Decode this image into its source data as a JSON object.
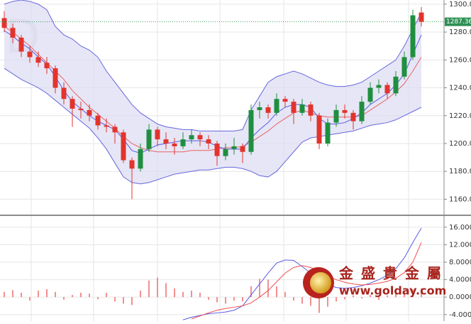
{
  "chart_data": [
    {
      "type": "candlestick",
      "up_color": "#1f8f3f",
      "down_color": "#e3342c",
      "candles": [
        [
          1290,
          1295,
          1280,
          1283
        ],
        [
          1283,
          1286,
          1272,
          1276
        ],
        [
          1276,
          1278,
          1262,
          1266
        ],
        [
          1266,
          1270,
          1258,
          1262
        ],
        [
          1262,
          1266,
          1255,
          1258
        ],
        [
          1258,
          1262,
          1250,
          1254
        ],
        [
          1254,
          1256,
          1236,
          1240
        ],
        [
          1240,
          1244,
          1228,
          1232
        ],
        [
          1232,
          1234,
          1212,
          1225
        ],
        [
          1225,
          1230,
          1218,
          1224
        ],
        [
          1224,
          1228,
          1216,
          1220
        ],
        [
          1220,
          1222,
          1210,
          1213
        ],
        [
          1213,
          1218,
          1208,
          1212
        ],
        [
          1212,
          1214,
          1200,
          1208
        ],
        [
          1208,
          1210,
          1186,
          1188
        ],
        [
          1188,
          1190,
          1160,
          1182
        ],
        [
          1182,
          1200,
          1180,
          1196
        ],
        [
          1196,
          1214,
          1194,
          1210
        ],
        [
          1210,
          1212,
          1198,
          1203
        ],
        [
          1203,
          1208,
          1196,
          1200
        ],
        [
          1200,
          1204,
          1192,
          1198
        ],
        [
          1198,
          1208,
          1196,
          1203
        ],
        [
          1203,
          1210,
          1200,
          1206
        ],
        [
          1206,
          1208,
          1198,
          1203
        ],
        [
          1203,
          1206,
          1196,
          1200
        ],
        [
          1200,
          1202,
          1184,
          1191
        ],
        [
          1191,
          1200,
          1188,
          1196
        ],
        [
          1196,
          1204,
          1192,
          1198
        ],
        [
          1198,
          1200,
          1186,
          1194
        ],
        [
          1194,
          1228,
          1192,
          1224
        ],
        [
          1224,
          1230,
          1218,
          1226
        ],
        [
          1226,
          1228,
          1218,
          1222
        ],
        [
          1222,
          1236,
          1220,
          1232
        ],
        [
          1232,
          1234,
          1226,
          1230
        ],
        [
          1230,
          1232,
          1214,
          1222
        ],
        [
          1222,
          1232,
          1220,
          1228
        ],
        [
          1228,
          1230,
          1216,
          1220
        ],
        [
          1220,
          1222,
          1196,
          1200
        ],
        [
          1200,
          1218,
          1198,
          1215
        ],
        [
          1215,
          1228,
          1212,
          1224
        ],
        [
          1224,
          1228,
          1218,
          1222
        ],
        [
          1222,
          1224,
          1210,
          1216
        ],
        [
          1216,
          1234,
          1214,
          1230
        ],
        [
          1230,
          1244,
          1228,
          1240
        ],
        [
          1240,
          1246,
          1236,
          1242
        ],
        [
          1242,
          1244,
          1232,
          1236
        ],
        [
          1236,
          1252,
          1234,
          1248
        ],
        [
          1248,
          1266,
          1246,
          1262
        ],
        [
          1262,
          1296,
          1260,
          1292
        ],
        [
          1294,
          1298,
          1284,
          1287.36
        ]
      ],
      "bands": {
        "color": "#6767e0",
        "fill_color": "#dcdcf2",
        "upper": [
          1300,
          1302,
          1303,
          1302,
          1300,
          1296,
          1284,
          1278,
          1275,
          1270,
          1267,
          1262,
          1252,
          1244,
          1236,
          1228,
          1222,
          1218,
          1214,
          1212,
          1211,
          1210,
          1210,
          1209,
          1209,
          1209,
          1209,
          1209,
          1210,
          1224,
          1234,
          1244,
          1248,
          1250,
          1252,
          1250,
          1247,
          1244,
          1242,
          1241,
          1241,
          1242,
          1244,
          1248,
          1252,
          1256,
          1260,
          1270,
          1282,
          1294
        ],
        "lower": [
          1254,
          1250,
          1246,
          1243,
          1240,
          1236,
          1231,
          1226,
          1221,
          1216,
          1211,
          1204,
          1196,
          1186,
          1176,
          1172,
          1171,
          1172,
          1174,
          1176,
          1178,
          1179,
          1180,
          1181,
          1181,
          1182,
          1183,
          1183,
          1182,
          1180,
          1177,
          1176,
          1180,
          1187,
          1194,
          1201,
          1204,
          1205,
          1206,
          1207,
          1208,
          1209,
          1211,
          1213,
          1214,
          1215,
          1217,
          1220,
          1223,
          1226
        ]
      },
      "lines": [
        {
          "color": "#e86464",
          "values": [
            1284,
            1280,
            1275,
            1270,
            1264,
            1258,
            1252,
            1246,
            1238,
            1232,
            1226,
            1221,
            1216,
            1211,
            1205,
            1200,
            1197,
            1195,
            1194,
            1194,
            1194,
            1194,
            1195,
            1195,
            1195,
            1196,
            1197,
            1197,
            1198,
            1201,
            1205,
            1209,
            1214,
            1218,
            1222,
            1224,
            1222,
            1220,
            1219,
            1219,
            1219,
            1219,
            1220,
            1224,
            1228,
            1232,
            1237,
            1243,
            1252,
            1262
          ]
        },
        {
          "color": "#5a5ae6",
          "values": [
            1281,
            1277,
            1272,
            1268,
            1262,
            1257,
            1248,
            1238,
            1230,
            1225,
            1220,
            1216,
            1213,
            1210,
            1203,
            1195,
            1193,
            1196,
            1199,
            1200,
            1201,
            1202,
            1202,
            1202,
            1201,
            1198,
            1196,
            1196,
            1196,
            1204,
            1210,
            1215,
            1222,
            1226,
            1228,
            1228,
            1226,
            1218,
            1214,
            1214,
            1215,
            1218,
            1222,
            1228,
            1232,
            1236,
            1242,
            1250,
            1264,
            1278
          ]
        }
      ],
      "ylim": [
        1149,
        1303
      ],
      "yticks": [
        {
          "value": 1160,
          "label": "1160.0"
        },
        {
          "value": 1180,
          "label": "1180.0"
        },
        {
          "value": 1200,
          "label": "1200.0"
        },
        {
          "value": 1220,
          "label": "1220.0"
        },
        {
          "value": 1240,
          "label": "1240.0"
        },
        {
          "value": 1260,
          "label": "1260.0"
        },
        {
          "value": 1280,
          "label": "1280.0"
        },
        {
          "value": 1300,
          "label": "1300.0"
        }
      ],
      "grid": true
    },
    {
      "type": "macd",
      "histogram": {
        "color": "#f06a6a",
        "values": [
          1.2,
          1.6,
          1.0,
          -0.8,
          1.5,
          1.8,
          1.2,
          -0.6,
          0.5,
          1.0,
          0.8,
          -0.5,
          1.0,
          -1.0,
          -1.5,
          -1.8,
          1.5,
          3.8,
          4.5,
          3.2,
          2.0,
          1.2,
          1.5,
          1.0,
          -0.6,
          -1.2,
          -1.5,
          -0.8,
          -1.0,
          2.5,
          4.2,
          4.0,
          2.5,
          1.2,
          -0.8,
          -1.5,
          -2.0,
          -3.6,
          -2.2,
          -1.0,
          -0.5,
          0.4,
          -0.3,
          0.5,
          -0.6,
          0.4,
          0.8,
          1.2,
          1.8,
          2.0
        ]
      },
      "lines": [
        {
          "color": "#5a5ae6",
          "values": [
            null,
            null,
            null,
            null,
            null,
            null,
            null,
            null,
            null,
            null,
            null,
            null,
            null,
            null,
            null,
            null,
            null,
            null,
            null,
            null,
            null,
            -5.2,
            -4.6,
            -4.2,
            -3.8,
            -3.6,
            -3.4,
            -3.0,
            -2.0,
            0.5,
            3.0,
            5.5,
            7.8,
            8.5,
            8.4,
            7.0,
            5.5,
            3.8,
            2.8,
            2.2,
            2.0,
            2.2,
            2.6,
            3.2,
            4.0,
            5.0,
            6.5,
            9.0,
            12.5,
            15.8
          ]
        },
        {
          "color": "#f05050",
          "values": [
            null,
            null,
            null,
            null,
            null,
            null,
            null,
            null,
            null,
            null,
            null,
            null,
            null,
            null,
            null,
            null,
            null,
            null,
            null,
            null,
            null,
            null,
            -5.0,
            -4.3,
            -3.6,
            -3.0,
            -2.6,
            -2.3,
            -2.0,
            -1.3,
            0.0,
            1.5,
            3.5,
            5.5,
            6.8,
            7.2,
            6.8,
            5.8,
            4.8,
            4.0,
            3.4,
            3.0,
            2.8,
            2.9,
            3.2,
            3.6,
            4.3,
            5.6,
            8.0,
            12.5
          ]
        }
      ],
      "ylim": [
        -5.5,
        18.4
      ],
      "yticks": [
        {
          "value": -4,
          "label": "-4.0000"
        },
        {
          "value": 0,
          "label": "0.0000"
        },
        {
          "value": 4,
          "label": "4.0000"
        },
        {
          "value": 8,
          "label": "8.0000"
        },
        {
          "value": 12,
          "label": "12.0000"
        },
        {
          "value": 16,
          "label": "16.0000"
        }
      ],
      "grid": true
    }
  ],
  "watermark": {
    "period": "D",
    "brand": "金 盛 貴 金 屬",
    "url": "www.golday.com"
  }
}
